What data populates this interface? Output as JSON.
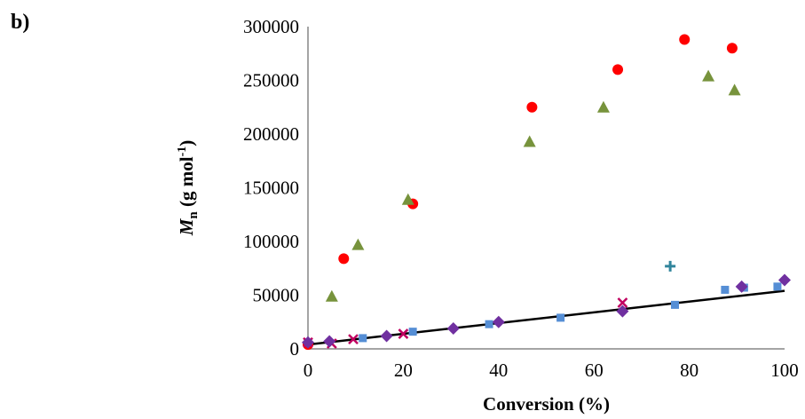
{
  "panel_label": "b)",
  "chart_data": {
    "type": "scatter",
    "xlabel": "Conversion (%)",
    "ylabel": {
      "main": "M",
      "sub": "n",
      "unit_pre": " (g mol",
      "unit_sup": "-1",
      "unit_post": ")"
    },
    "xlim": [
      0,
      100
    ],
    "ylim": [
      0,
      300000
    ],
    "xticks": [
      0,
      20,
      40,
      60,
      80,
      100
    ],
    "yticks": [
      0,
      50000,
      100000,
      150000,
      200000,
      250000,
      300000
    ],
    "grid": false,
    "legend": "none",
    "series": [
      {
        "marker": "circle",
        "color": "#ff0000",
        "points": [
          [
            0,
            4000
          ],
          [
            7.5,
            84000
          ],
          [
            22,
            135000
          ],
          [
            47,
            225000
          ],
          [
            65,
            260000
          ],
          [
            79,
            288000
          ],
          [
            89,
            280000
          ]
        ]
      },
      {
        "marker": "triangle",
        "color": "#77933c",
        "points": [
          [
            5,
            49000
          ],
          [
            10.5,
            97000
          ],
          [
            21,
            139000
          ],
          [
            46.5,
            193000
          ],
          [
            62,
            225000
          ],
          [
            84,
            254000
          ],
          [
            89.5,
            241000
          ]
        ]
      },
      {
        "marker": "square",
        "color": "#558ed5",
        "points": [
          [
            11.5,
            10000
          ],
          [
            22,
            16000
          ],
          [
            38,
            23000
          ],
          [
            53,
            29000
          ],
          [
            77,
            41000
          ],
          [
            87.5,
            55000
          ],
          [
            91.5,
            57000
          ],
          [
            98.5,
            58000
          ]
        ]
      },
      {
        "marker": "cross",
        "color": "#c00060",
        "points": [
          [
            0,
            6000
          ],
          [
            5,
            5000
          ],
          [
            9.5,
            9000
          ],
          [
            20,
            14000
          ],
          [
            66,
            43000
          ]
        ]
      },
      {
        "marker": "diamond",
        "color": "#7030a0",
        "points": [
          [
            0,
            6000
          ],
          [
            4.5,
            7000
          ],
          [
            16.5,
            12000
          ],
          [
            30.5,
            19000
          ],
          [
            40,
            25000
          ],
          [
            66,
            35000
          ],
          [
            91,
            58000
          ],
          [
            100,
            64000
          ]
        ]
      },
      {
        "marker": "plus",
        "color": "#31859c",
        "points": [
          [
            76,
            77000
          ]
        ]
      }
    ],
    "trendline": {
      "color": "#000000",
      "points": [
        [
          0,
          4000
        ],
        [
          100,
          54000
        ]
      ]
    }
  }
}
